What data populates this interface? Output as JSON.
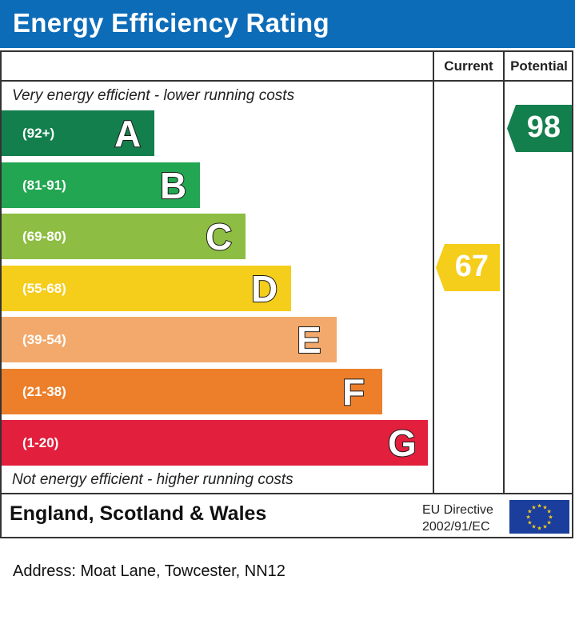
{
  "header": {
    "title": "Energy Efficiency Rating",
    "background": "#0d6cb8"
  },
  "columns": {
    "current": "Current",
    "potential": "Potential"
  },
  "captions": {
    "top": "Very energy efficient - lower running costs",
    "bottom": "Not energy efficient - higher running costs"
  },
  "chart_data": {
    "type": "bar",
    "title": "Energy Efficiency Rating",
    "categories": [
      "A",
      "B",
      "C",
      "D",
      "E",
      "F",
      "G"
    ],
    "bands": [
      {
        "letter": "A",
        "range": "(92+)",
        "min": 92,
        "max": 100,
        "color": "#137f4c"
      },
      {
        "letter": "B",
        "range": "(81-91)",
        "min": 81,
        "max": 91,
        "color": "#22a651"
      },
      {
        "letter": "C",
        "range": "(69-80)",
        "min": 69,
        "max": 80,
        "color": "#8dbd42"
      },
      {
        "letter": "D",
        "range": "(55-68)",
        "min": 55,
        "max": 68,
        "color": "#f5cd1b"
      },
      {
        "letter": "E",
        "range": "(39-54)",
        "min": 39,
        "max": 54,
        "color": "#f2a96b"
      },
      {
        "letter": "F",
        "range": "(21-38)",
        "min": 21,
        "max": 38,
        "color": "#ed7f2a"
      },
      {
        "letter": "G",
        "range": "(1-20)",
        "min": 1,
        "max": 20,
        "color": "#e21f3c"
      }
    ],
    "current": {
      "value": 67,
      "band": "D",
      "color": "#f5cd1b"
    },
    "potential": {
      "value": 98,
      "band": "A",
      "color": "#137f4c"
    }
  },
  "footer": {
    "region": "England, Scotland & Wales",
    "directive_line1": "EU Directive",
    "directive_line2": "2002/91/EC",
    "flag_color": "#1b3e9c",
    "star_color": "#f5cd1b"
  },
  "address": "Address: Moat Lane, Towcester, NN12"
}
